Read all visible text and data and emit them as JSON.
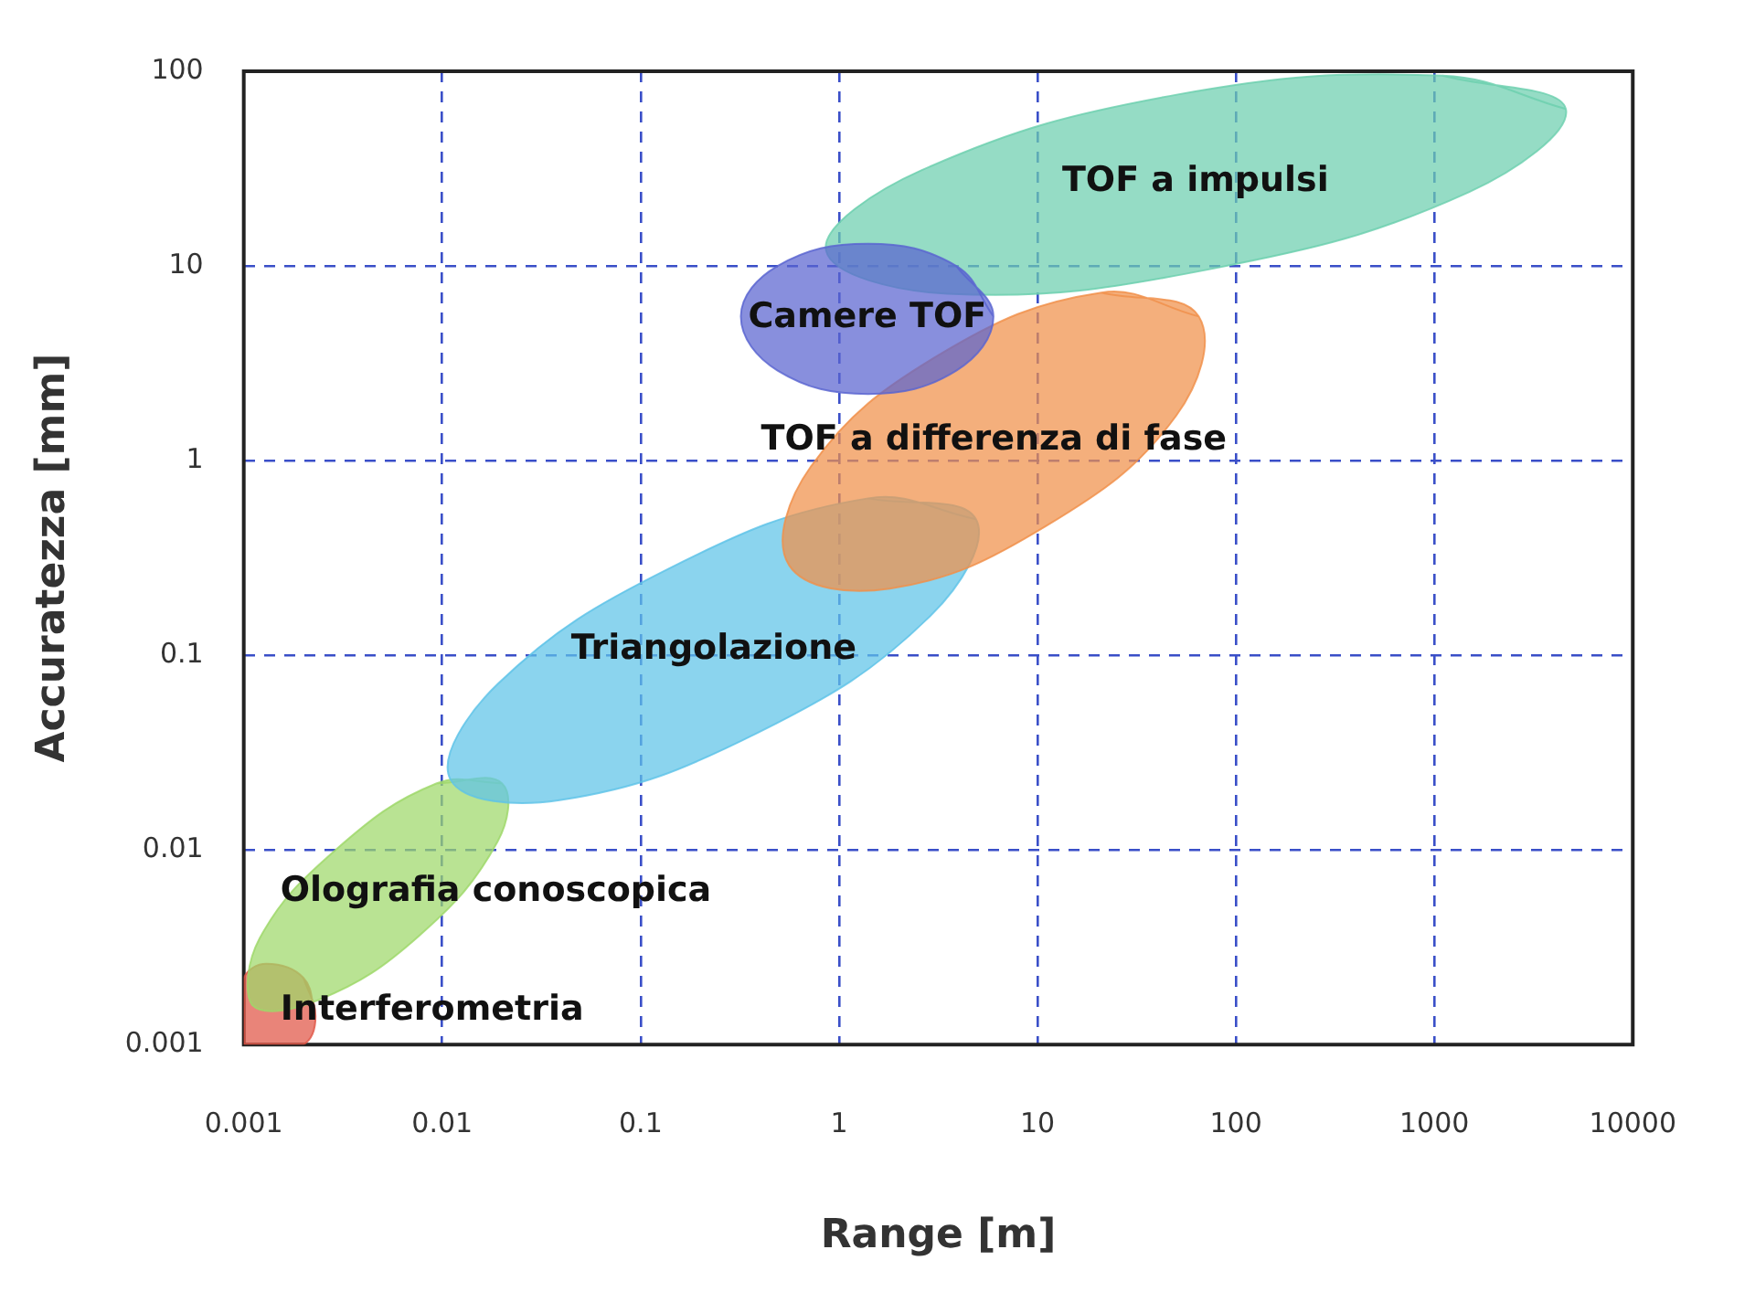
{
  "chart_data": {
    "type": "area",
    "xlabel": "Range [m]",
    "ylabel": "Accuratezza [mm]",
    "log": "xy",
    "grid": true,
    "marker": "none",
    "xlim": [
      0.001,
      10000
    ],
    "xticks": [
      0.001,
      0.01,
      0.1,
      1,
      10,
      100,
      1000,
      10000
    ],
    "ylim": [
      0.001,
      100
    ],
    "yticks": [
      0.001,
      0.01,
      0.1,
      1,
      10,
      100
    ],
    "series": [
      {
        "name": "Interferometria",
        "color": "#e05545",
        "x": [
          0.0023,
          0.002,
          0.0013,
          0.001,
          0.001,
          0.001,
          0.0013,
          0.002
        ],
        "values": [
          0.0014,
          0.0022,
          0.0026,
          0.0022,
          0.0014,
          0.001,
          0.001,
          0.001
        ]
      },
      {
        "name": "Olografia conoscopica",
        "color": "#9ed86a",
        "x": [
          0.02,
          0.0094,
          0.0029,
          0.0012,
          0.0011,
          0.0024,
          0.0076,
          0.019
        ],
        "values": [
          0.022,
          0.022,
          0.01,
          0.0035,
          0.0016,
          0.0017,
          0.0036,
          0.011
        ]
      },
      {
        "name": "Triangolazione",
        "color": "#5ec3e8",
        "x": [
          4.9,
          1.4,
          0.14,
          0.019,
          0.011,
          0.039,
          0.39,
          2.9
        ],
        "values": [
          0.5,
          0.64,
          0.28,
          0.071,
          0.023,
          0.018,
          0.04,
          0.16
        ]
      },
      {
        "name": "TOF a differenza di fase",
        "color": "#f0904a",
        "x": [
          65,
          21,
          3.2,
          0.72,
          0.56,
          1.8,
          11,
          50
        ],
        "values": [
          5.5,
          7.3,
          3.5,
          0.93,
          0.29,
          0.22,
          0.46,
          1.7
        ]
      },
      {
        "name": "TOF a impulsi",
        "color": "#6ccfae",
        "x": [
          4600,
          1100,
          51,
          2.6,
          0.86,
          3.5,
          77,
          1500
        ],
        "values": [
          64,
          95,
          76,
          31,
          12,
          7.2,
          9.7,
          24
        ]
      },
      {
        "name": "Camere TOF",
        "color": "#5a64d0",
        "x": [
          6,
          3.9,
          1.4,
          0.49,
          0.32,
          0.49,
          1.4,
          3.9
        ],
        "values": [
          5.5,
          10,
          13,
          10,
          5.5,
          2.9,
          2.2,
          2.9
        ]
      }
    ]
  }
}
